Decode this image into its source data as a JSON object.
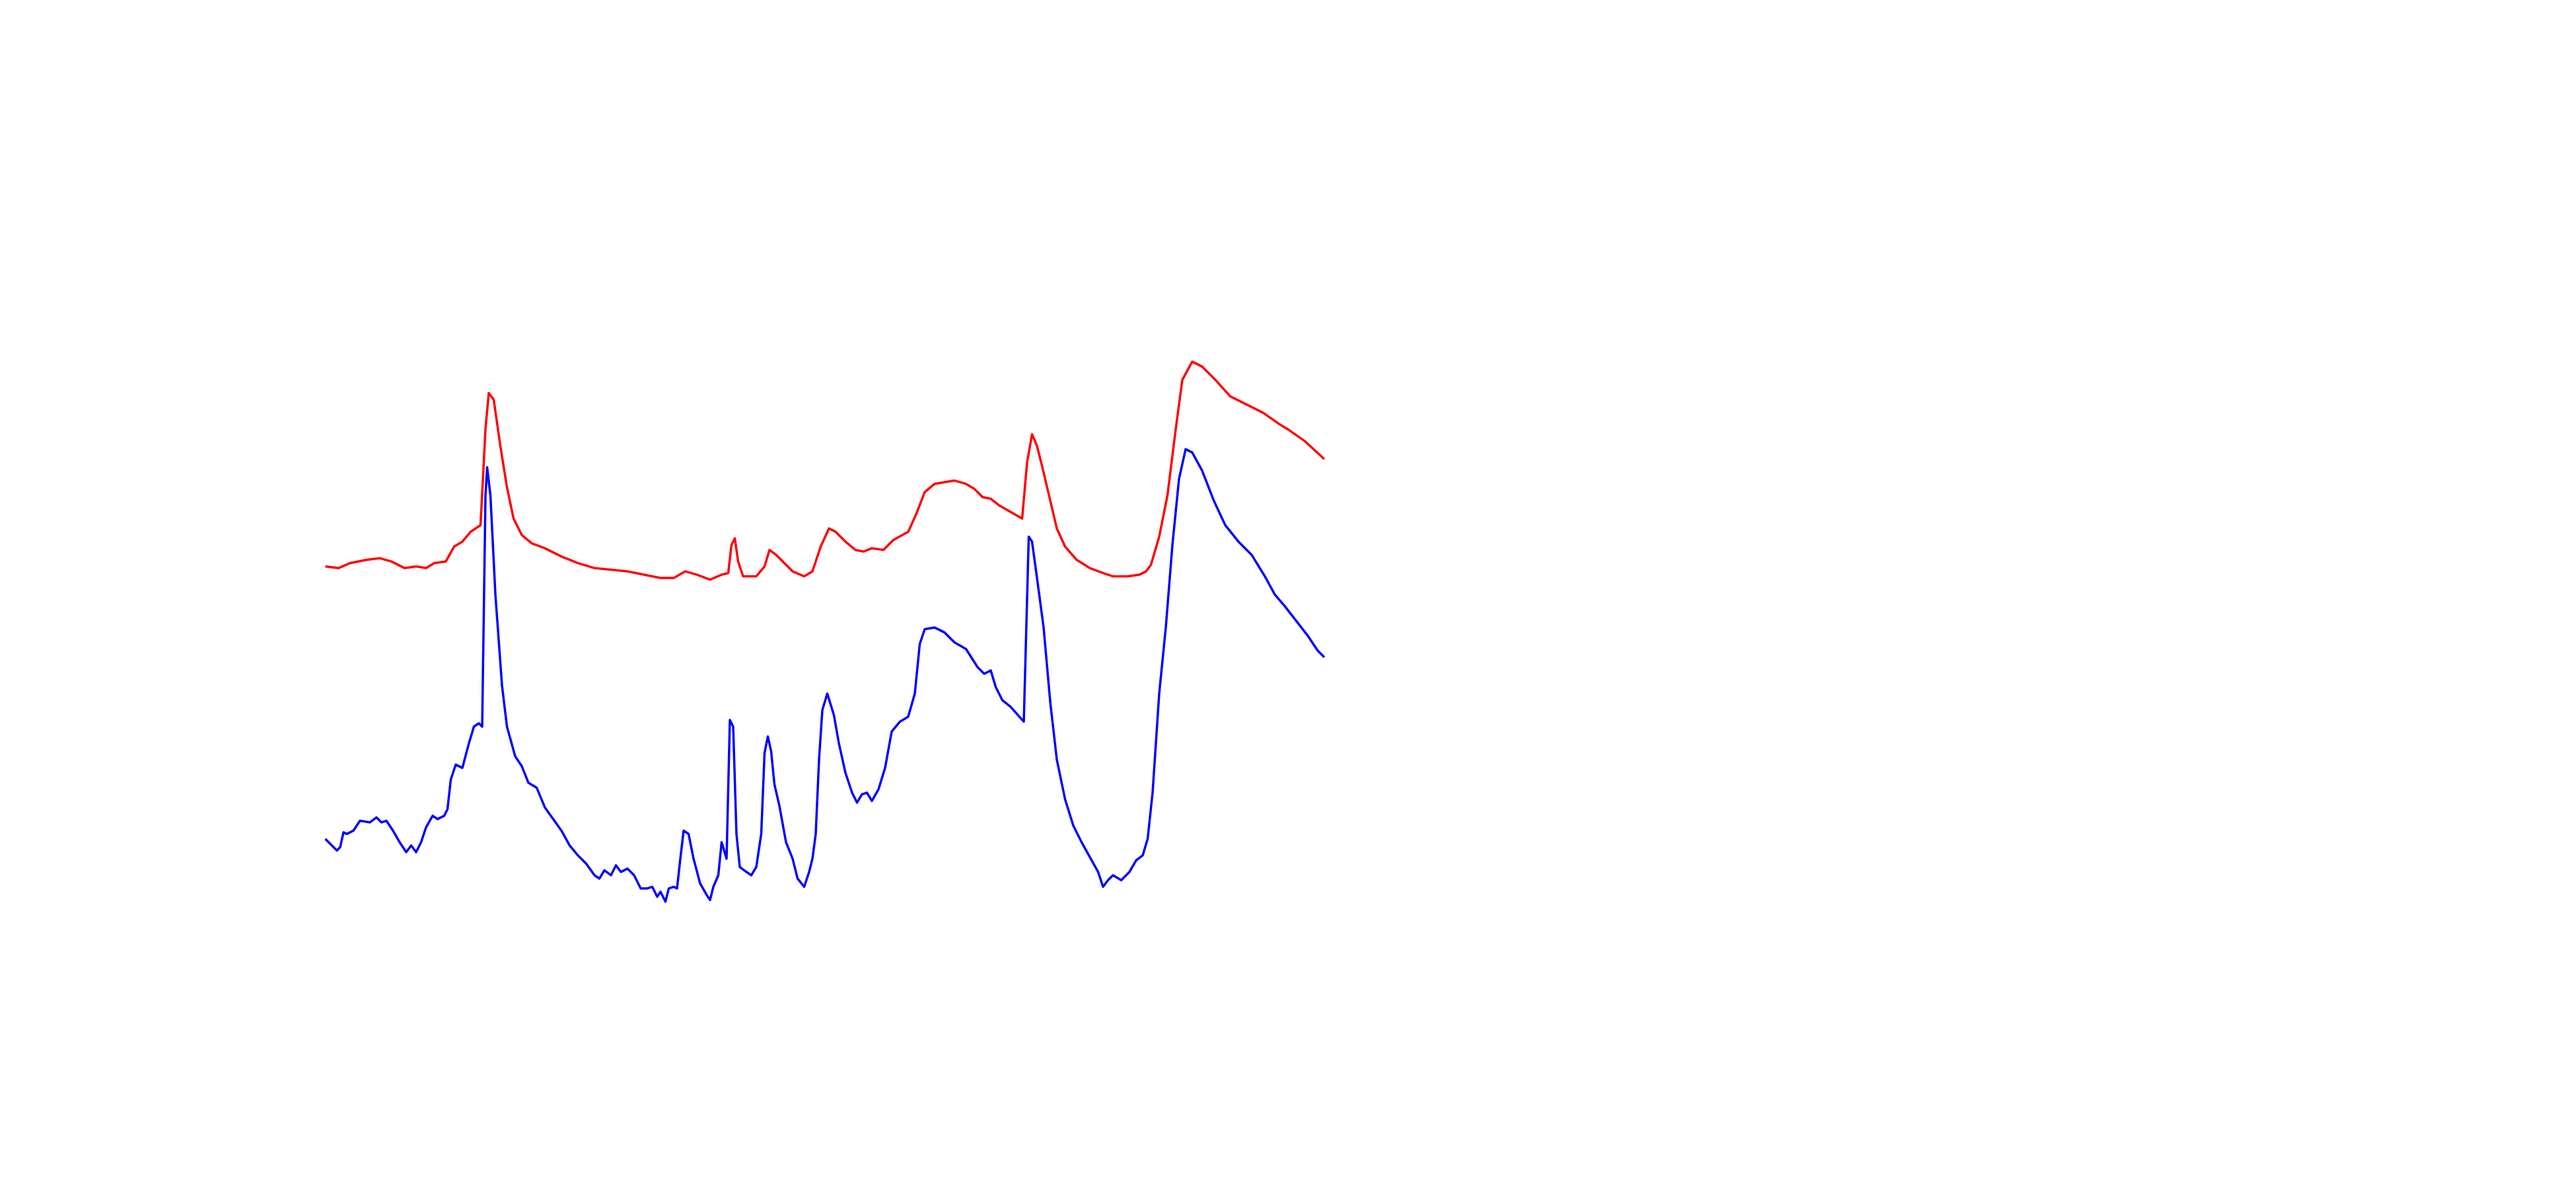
{
  "chart_data": {
    "type": "line",
    "xlim": [
      0,
      1560
    ],
    "ylim": [
      0,
      720
    ],
    "series": [
      {
        "color": "#ff0000",
        "x": [
          197,
          205,
          212,
          222,
          230,
          237,
          245,
          252,
          258,
          263,
          270,
          275,
          280,
          285,
          291,
          294,
          296,
          299,
          303,
          307,
          311,
          316,
          322,
          330,
          340,
          350,
          360,
          370,
          380,
          390,
          400,
          408,
          415,
          422,
          430,
          437,
          441,
          443,
          445,
          447,
          450,
          458,
          463,
          466,
          470,
          475,
          480,
          487,
          492,
          497,
          502,
          506,
          512,
          518,
          523,
          528,
          535,
          541,
          550,
          555,
          560,
          566,
          572,
          578,
          585,
          590,
          595,
          600,
          605,
          612,
          619,
          622,
          625,
          628,
          631,
          636,
          640,
          645,
          652,
          660,
          668,
          674,
          683,
          690,
          694,
          697,
          702,
          707,
          712,
          716,
          722,
          728,
          736,
          745,
          755,
          765,
          775,
          780,
          790,
          802
        ],
        "values": [
          377,
          376,
          379,
          381,
          382,
          380,
          376,
          377,
          376,
          379,
          380,
          389,
          392,
          398,
          402,
          460,
          482,
          478,
          450,
          425,
          406,
          396,
          391,
          388,
          383,
          379,
          376,
          375,
          374,
          372,
          370,
          370,
          374,
          372,
          369,
          372,
          373,
          390,
          394,
          380,
          371,
          371,
          377,
          387,
          384,
          379,
          374,
          371,
          374,
          389,
          400,
          398,
          392,
          387,
          386,
          388,
          387,
          393,
          398,
          409,
          422,
          427,
          428,
          429,
          427,
          424,
          419,
          418,
          414,
          410,
          406,
          440,
          457,
          450,
          438,
          417,
          400,
          389,
          381,
          376,
          373,
          371,
          371,
          372,
          374,
          378,
          395,
          420,
          460,
          490,
          501,
          498,
          490,
          480,
          475,
          470,
          463,
          460,
          453,
          442
        ]
      },
      {
        "color": "#0000ff",
        "x": [
          197,
          201,
          204,
          206,
          208,
          210,
          214,
          218,
          224,
          228,
          231,
          234,
          238,
          242,
          246,
          249,
          252,
          255,
          258,
          262,
          265,
          269,
          271,
          273,
          276,
          280,
          284,
          287,
          290,
          292,
          294,
          295,
          297,
          300,
          304,
          307,
          312,
          316,
          320,
          325,
          330,
          335,
          340,
          345,
          350,
          355,
          360,
          363,
          366,
          370,
          373,
          376,
          380,
          384,
          388,
          392,
          395,
          398,
          400,
          403,
          405,
          408,
          410,
          412,
          414,
          417,
          420,
          424,
          428,
          430,
          432,
          435,
          437,
          440,
          442,
          444,
          446,
          448,
          452,
          455,
          458,
          461,
          463,
          465,
          467,
          469,
          472,
          476,
          480,
          483,
          487,
          490,
          492,
          494,
          496,
          498,
          501,
          505,
          508,
          512,
          516,
          519,
          522,
          525,
          528,
          532,
          536,
          540,
          545,
          550,
          554,
          557,
          560,
          566,
          572,
          578,
          585,
          592,
          596,
          600,
          603,
          607,
          612,
          620,
          623,
          625,
          628,
          632,
          636,
          640,
          645,
          650,
          655,
          660,
          665,
          668,
          671,
          674,
          679,
          684,
          688,
          692,
          695,
          698,
          702,
          706,
          710,
          714,
          718,
          722,
          728,
          735,
          742,
          750,
          758,
          766,
          772,
          778,
          785,
          792,
          798,
          802
        ],
        "values": [
          212,
          208,
          205,
          207,
          216,
          215,
          217,
          223,
          222,
          225,
          222,
          223,
          217,
          210,
          204,
          208,
          204,
          210,
          219,
          226,
          224,
          226,
          230,
          248,
          257,
          255,
          270,
          280,
          282,
          280,
          420,
          437,
          420,
          360,
          305,
          280,
          262,
          256,
          246,
          243,
          231,
          224,
          217,
          208,
          202,
          197,
          190,
          188,
          193,
          190,
          196,
          192,
          194,
          190,
          182,
          182,
          183,
          177,
          180,
          174,
          182,
          183,
          182,
          200,
          217,
          215,
          200,
          185,
          178,
          175,
          183,
          190,
          210,
          200,
          284,
          280,
          215,
          195,
          192,
          190,
          195,
          215,
          264,
          274,
          265,
          245,
          232,
          210,
          200,
          188,
          183,
          192,
          200,
          215,
          260,
          290,
          300,
          287,
          270,
          252,
          240,
          234,
          239,
          240,
          235,
          242,
          255,
          277,
          283,
          286,
          300,
          330,
          339,
          340,
          337,
          331,
          327,
          316,
          312,
          314,
          304,
          296,
          292,
          283,
          395,
          392,
          370,
          340,
          295,
          260,
          236,
          220,
          210,
          201,
          192,
          183,
          187,
          190,
          187,
          192,
          199,
          202,
          212,
          240,
          300,
          340,
          390,
          430,
          448,
          446,
          435,
          417,
          402,
          392,
          384,
          371,
          360,
          353,
          344,
          335,
          326,
          322
        ]
      }
    ]
  }
}
